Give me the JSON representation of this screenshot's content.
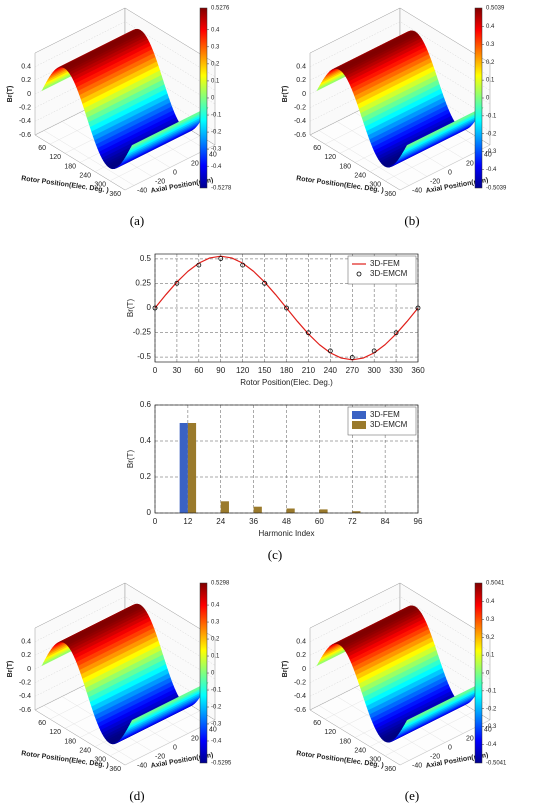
{
  "chart_data": [
    {
      "type": "surface",
      "caption": "(a)",
      "zlabel": "Br(T)",
      "xlabel": "Rotor Position(Elec. Deg. )",
      "ylabel": "Axial Position(mm)",
      "xlim": [
        0,
        360
      ],
      "xticks": [
        60,
        120,
        180,
        240,
        300,
        360
      ],
      "ylim": [
        -50,
        50
      ],
      "yticks": [
        -40,
        -20,
        0,
        20,
        40
      ],
      "zlim": [
        -0.6,
        0.6
      ],
      "zticks": [
        -0.6,
        -0.4,
        -0.2,
        0,
        0.2,
        0.4
      ],
      "clim": [
        -0.5278,
        0.5276
      ],
      "cticks": [
        -0.4,
        -0.3,
        -0.2,
        -0.1,
        0,
        0.1,
        0.2,
        0.3,
        0.4
      ]
    },
    {
      "type": "surface",
      "caption": "(b)",
      "zlabel": "Br(T)",
      "xlabel": "Rotor Position(Elec. Deg. )",
      "ylabel": "Axial Position(mm)",
      "xlim": [
        0,
        360
      ],
      "xticks": [
        60,
        120,
        180,
        240,
        300,
        360
      ],
      "ylim": [
        -50,
        50
      ],
      "yticks": [
        -40,
        -20,
        0,
        20,
        40
      ],
      "zlim": [
        -0.6,
        0.6
      ],
      "zticks": [
        -0.6,
        -0.4,
        -0.2,
        0,
        0.2,
        0.4
      ],
      "clim": [
        -0.5039,
        0.5039
      ],
      "cticks": [
        -0.4,
        -0.3,
        -0.2,
        -0.1,
        0,
        0.1,
        0.2,
        0.3,
        0.4
      ]
    },
    {
      "type": "line",
      "caption": "(c)",
      "xlabel": "Rotor Position(Elec. Deg.)",
      "ylabel": "Br(T)",
      "xlim": [
        0,
        360
      ],
      "xticks": [
        0,
        30,
        60,
        90,
        120,
        150,
        180,
        210,
        240,
        270,
        300,
        330,
        360
      ],
      "ylim": [
        -0.55,
        0.55
      ],
      "yticks": [
        -0.5,
        -0.25,
        0,
        0.25,
        0.5
      ],
      "grid": true,
      "legend": "upper right",
      "series": [
        {
          "name": "3D-FEM",
          "color": "#e0201b",
          "marker": "none",
          "x": [
            0,
            15,
            30,
            45,
            60,
            75,
            90,
            105,
            120,
            135,
            150,
            165,
            180,
            195,
            210,
            225,
            240,
            255,
            270,
            285,
            300,
            315,
            330,
            345,
            360
          ],
          "values": [
            0,
            0.137,
            0.264,
            0.373,
            0.457,
            0.51,
            0.528,
            0.51,
            0.457,
            0.373,
            0.264,
            0.137,
            0,
            -0.137,
            -0.264,
            -0.373,
            -0.457,
            -0.51,
            -0.528,
            -0.51,
            -0.457,
            -0.373,
            -0.264,
            -0.137,
            0
          ]
        },
        {
          "name": "3D-EMCM",
          "color": "#000000",
          "marker": "circle",
          "x": [
            0,
            30,
            60,
            90,
            120,
            150,
            180,
            210,
            240,
            270,
            300,
            330,
            360
          ],
          "values": [
            0,
            0.252,
            0.437,
            0.504,
            0.437,
            0.252,
            0,
            -0.252,
            -0.437,
            -0.504,
            -0.437,
            -0.252,
            0
          ]
        }
      ]
    },
    {
      "type": "bar",
      "xlabel": "Harmonic Index",
      "ylabel": "Br(T)",
      "xlim": [
        0,
        96
      ],
      "xticks": [
        0,
        12,
        24,
        36,
        48,
        60,
        72,
        84,
        96
      ],
      "ylim": [
        0,
        0.6
      ],
      "yticks": [
        0,
        0.2,
        0.4,
        0.6
      ],
      "grid": true,
      "legend": "upper right",
      "x": [
        12,
        24,
        36,
        48,
        60,
        72
      ],
      "series": [
        {
          "name": "3D-FEM",
          "color": "#3a62c4",
          "values": [
            0.5,
            0,
            0,
            0,
            0,
            0
          ]
        },
        {
          "name": "3D-EMCM",
          "color": "#9a7a2c",
          "values": [
            0.5,
            0.065,
            0.035,
            0.025,
            0.02,
            0.01
          ]
        }
      ]
    },
    {
      "type": "surface",
      "caption": "(d)",
      "zlabel": "Br(T)",
      "xlabel": "Rotor Position(Elec. Deg. )",
      "ylabel": "Axial Position(mm)",
      "xlim": [
        0,
        360
      ],
      "xticks": [
        60,
        120,
        180,
        240,
        300,
        360
      ],
      "ylim": [
        -50,
        50
      ],
      "yticks": [
        -40,
        -20,
        0,
        20,
        40
      ],
      "zlim": [
        -0.6,
        0.6
      ],
      "zticks": [
        -0.6,
        -0.4,
        -0.2,
        0,
        0.2,
        0.4
      ],
      "clim": [
        -0.5295,
        0.5298
      ],
      "cticks": [
        -0.4,
        -0.3,
        -0.2,
        -0.1,
        0,
        0.1,
        0.2,
        0.3,
        0.4
      ]
    },
    {
      "type": "surface",
      "caption": "(e)",
      "zlabel": "Br(T)",
      "xlabel": "Rotor Position(Elec. Deg. )",
      "ylabel": "Axial Position(mm)",
      "xlim": [
        0,
        360
      ],
      "xticks": [
        60,
        120,
        180,
        240,
        300,
        360
      ],
      "ylim": [
        -50,
        50
      ],
      "yticks": [
        -40,
        -20,
        0,
        20,
        40
      ],
      "zlim": [
        -0.6,
        0.6
      ],
      "zticks": [
        -0.6,
        -0.4,
        -0.2,
        0,
        0.2,
        0.4
      ],
      "clim": [
        -0.5041,
        0.5041
      ],
      "cticks": [
        -0.4,
        -0.3,
        -0.2,
        -0.1,
        0,
        0.1,
        0.2,
        0.3,
        0.4
      ]
    }
  ]
}
